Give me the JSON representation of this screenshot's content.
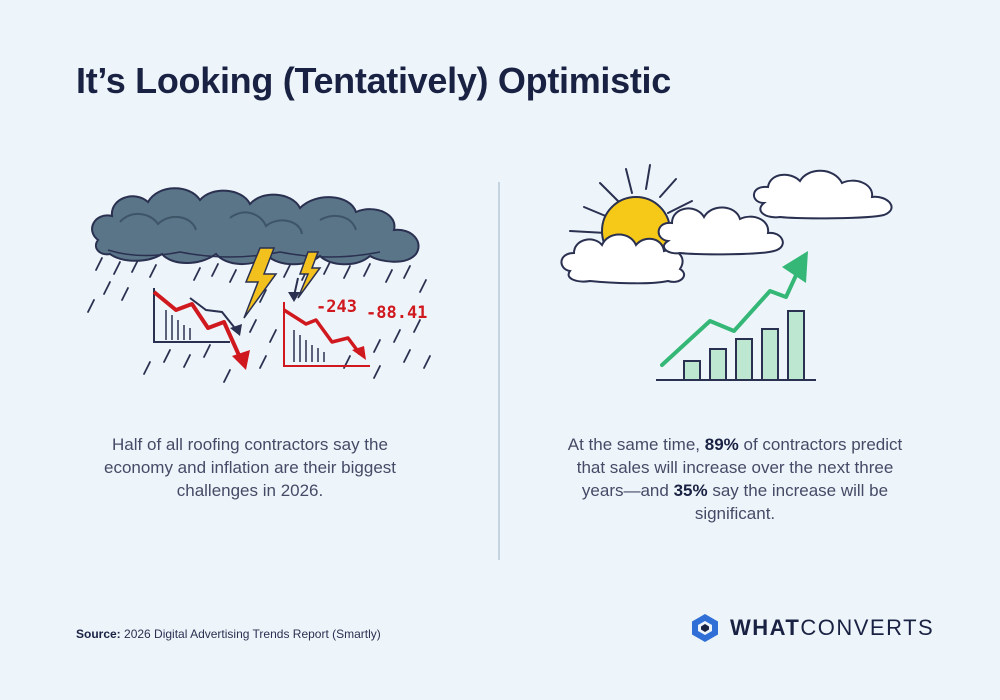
{
  "title": "It’s Looking (Tentatively) Optimistic",
  "left": {
    "caption": "Half of all roofing contractors say the economy and inflation are their biggest challenges in 2026.",
    "chart_labels": [
      "-243",
      "-88.41"
    ]
  },
  "right": {
    "caption_pre": "At the same time, ",
    "stat_1": "89%",
    "caption_mid": " of contractors predict that sales will increase over the next three years—and ",
    "stat_2": "35%",
    "caption_post": " say the increase will be significant."
  },
  "source": {
    "label": "Source:",
    "text": " 2026 Digital Advertising Trends Report (Smartly)"
  },
  "logo": {
    "bold": "WHAT",
    "regular": "CONVERTS"
  },
  "colors": {
    "background": "#eef5fa",
    "title": "#1a2244",
    "storm_cloud": "#5a7488",
    "down_red": "#d0191f",
    "bolt_yellow": "#f3c11d",
    "sun": "#f6c919",
    "up_green": "#35b877",
    "bar_fill": "#bde7d0",
    "logo_blue": "#2f6fd6"
  }
}
